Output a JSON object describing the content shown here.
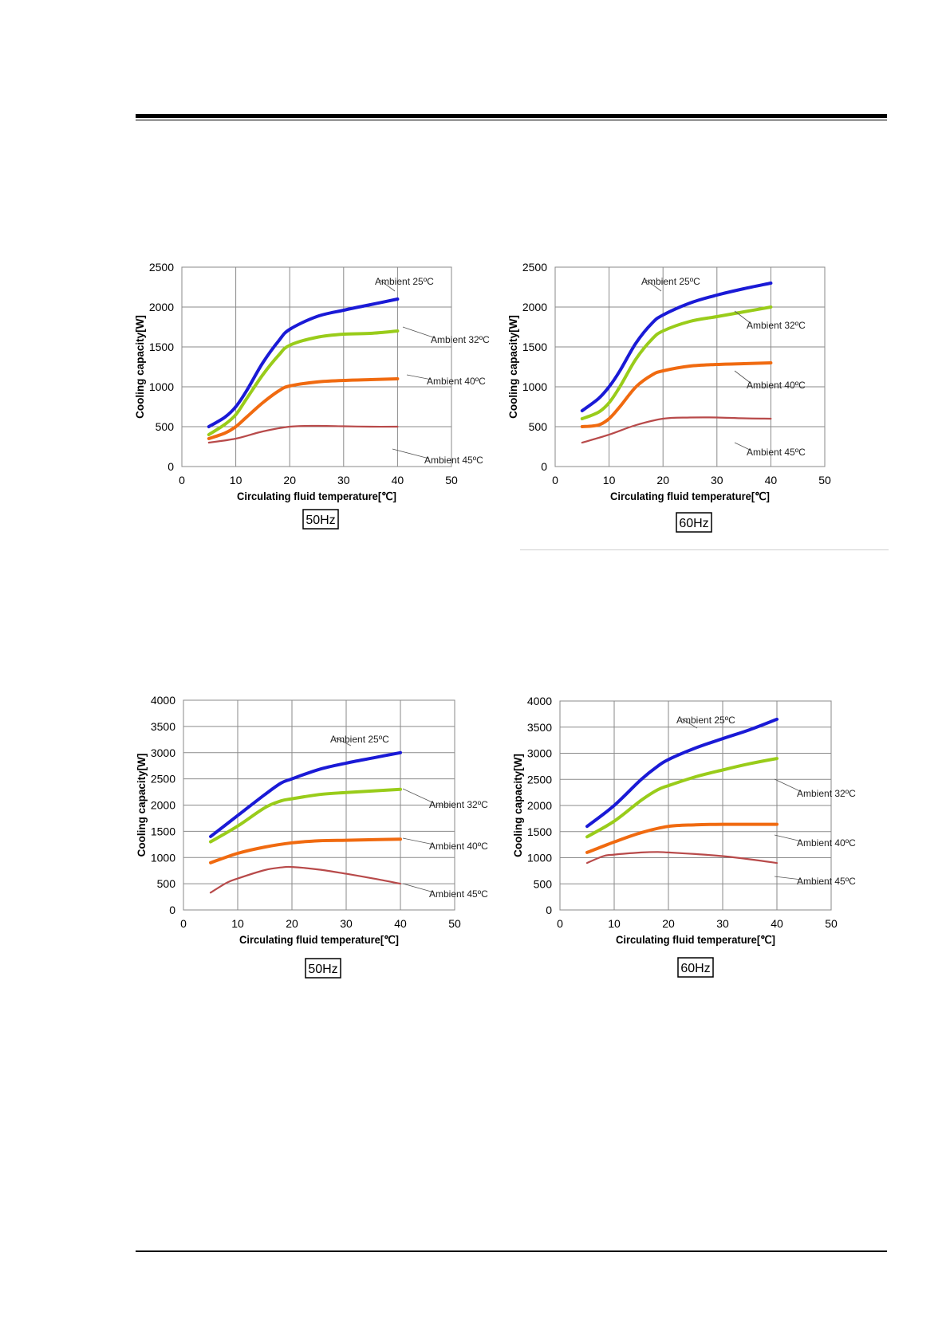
{
  "charts": [
    {
      "id": "chart1",
      "type": "line",
      "xlabel": "Circulating fluid temperature[℃]",
      "ylabel": "Cooling capacity[W]",
      "xlim": [
        0,
        50
      ],
      "ylim": [
        0,
        2500
      ],
      "xticks": [
        0,
        10,
        20,
        30,
        40,
        50
      ],
      "yticks": [
        0,
        500,
        1000,
        1500,
        2000,
        2500
      ],
      "grid": true,
      "freq_label": "50Hz",
      "series": [
        {
          "name": "Ambient 25ºC",
          "color": "#1a1ad6",
          "thick": true,
          "x": [
            5,
            8,
            10,
            12,
            15,
            18,
            20,
            25,
            30,
            35,
            40
          ],
          "y": [
            500,
            620,
            750,
            950,
            1300,
            1580,
            1720,
            1880,
            1960,
            2030,
            2100
          ]
        },
        {
          "name": "Ambient 32ºC",
          "color": "#99cc1a",
          "thick": true,
          "x": [
            5,
            8,
            10,
            12,
            15,
            18,
            20,
            25,
            30,
            35,
            40
          ],
          "y": [
            400,
            530,
            650,
            850,
            1150,
            1400,
            1520,
            1620,
            1660,
            1670,
            1700
          ]
        },
        {
          "name": "Ambient 40ºC",
          "color": "#f06a10",
          "thick": true,
          "x": [
            5,
            8,
            10,
            12,
            15,
            18,
            20,
            25,
            30,
            35,
            40
          ],
          "y": [
            350,
            420,
            500,
            620,
            800,
            950,
            1010,
            1060,
            1080,
            1090,
            1100
          ]
        },
        {
          "name": "Ambient 45ºC",
          "color": "#b84a4a",
          "thick": false,
          "x": [
            5,
            10,
            15,
            20,
            25,
            30,
            35,
            40
          ],
          "y": [
            300,
            350,
            440,
            500,
            510,
            505,
            500,
            500
          ]
        }
      ]
    },
    {
      "id": "chart2",
      "type": "line",
      "xlabel": "Circulating fluid temperature[℃]",
      "ylabel": "Cooling capacity[W]",
      "xlim": [
        0,
        50
      ],
      "ylim": [
        0,
        2500
      ],
      "xticks": [
        0,
        10,
        20,
        30,
        40,
        50
      ],
      "yticks": [
        0,
        500,
        1000,
        1500,
        2000,
        2500
      ],
      "grid": true,
      "freq_label": "60Hz",
      "series": [
        {
          "name": "Ambient 25ºC",
          "color": "#1a1ad6",
          "thick": true,
          "x": [
            5,
            8,
            10,
            12,
            15,
            18,
            20,
            25,
            30,
            35,
            40
          ],
          "y": [
            700,
            850,
            1000,
            1200,
            1550,
            1800,
            1900,
            2050,
            2150,
            2230,
            2300
          ]
        },
        {
          "name": "Ambient 32ºC",
          "color": "#99cc1a",
          "thick": true,
          "x": [
            5,
            8,
            10,
            12,
            15,
            18,
            20,
            25,
            30,
            35,
            40
          ],
          "y": [
            600,
            680,
            800,
            1000,
            1350,
            1600,
            1700,
            1820,
            1880,
            1940,
            2000
          ]
        },
        {
          "name": "Ambient 40ºC",
          "color": "#f06a10",
          "thick": true,
          "x": [
            5,
            8,
            10,
            12,
            15,
            18,
            20,
            25,
            30,
            35,
            40
          ],
          "y": [
            500,
            520,
            600,
            750,
            1000,
            1150,
            1200,
            1260,
            1280,
            1290,
            1300
          ]
        },
        {
          "name": "Ambient 45ºC",
          "color": "#b84a4a",
          "thick": false,
          "x": [
            5,
            10,
            15,
            20,
            25,
            30,
            35,
            40
          ],
          "y": [
            300,
            400,
            520,
            600,
            615,
            615,
            605,
            600
          ]
        }
      ]
    },
    {
      "id": "chart3",
      "type": "line",
      "xlabel": "Circulating fluid temperature[℃]",
      "ylabel": "Cooling capacity[W]",
      "xlim": [
        0,
        50
      ],
      "ylim": [
        0,
        4000
      ],
      "xticks": [
        0,
        10,
        20,
        30,
        40,
        50
      ],
      "yticks": [
        0,
        500,
        1000,
        1500,
        2000,
        2500,
        3000,
        3500,
        4000
      ],
      "grid": true,
      "freq_label": "50Hz",
      "series": [
        {
          "name": "Ambient 25ºC",
          "color": "#1a1ad6",
          "thick": true,
          "x": [
            5,
            10,
            15,
            18,
            20,
            25,
            30,
            35,
            40
          ],
          "y": [
            1400,
            1800,
            2200,
            2420,
            2500,
            2680,
            2800,
            2900,
            3000
          ]
        },
        {
          "name": "Ambient 32ºC",
          "color": "#99cc1a",
          "thick": true,
          "x": [
            5,
            10,
            15,
            18,
            20,
            25,
            30,
            35,
            40
          ],
          "y": [
            1300,
            1600,
            1950,
            2080,
            2120,
            2200,
            2240,
            2270,
            2300
          ]
        },
        {
          "name": "Ambient 40ºC",
          "color": "#f06a10",
          "thick": true,
          "x": [
            5,
            10,
            15,
            20,
            25,
            30,
            35,
            40
          ],
          "y": [
            900,
            1080,
            1200,
            1280,
            1320,
            1330,
            1340,
            1350
          ]
        },
        {
          "name": "Ambient 45ºC",
          "color": "#b84a4a",
          "thick": false,
          "x": [
            5,
            8,
            10,
            15,
            18,
            20,
            25,
            30,
            35,
            40
          ],
          "y": [
            330,
            520,
            600,
            760,
            810,
            820,
            770,
            690,
            600,
            500
          ]
        }
      ]
    },
    {
      "id": "chart4",
      "type": "line",
      "xlabel": "Circulating fluid temperature[℃]",
      "ylabel": "Cooling capacity[W]",
      "xlim": [
        0,
        50
      ],
      "ylim": [
        0,
        4000
      ],
      "xticks": [
        0,
        10,
        20,
        30,
        40,
        50
      ],
      "yticks": [
        0,
        500,
        1000,
        1500,
        2000,
        2500,
        3000,
        3500,
        4000
      ],
      "grid": true,
      "freq_label": "60Hz",
      "series": [
        {
          "name": "Ambient 25ºC",
          "color": "#1a1ad6",
          "thick": true,
          "x": [
            5,
            10,
            15,
            18,
            20,
            25,
            30,
            35,
            40
          ],
          "y": [
            1600,
            2000,
            2500,
            2750,
            2880,
            3100,
            3280,
            3450,
            3650
          ]
        },
        {
          "name": "Ambient 32ºC",
          "color": "#99cc1a",
          "thick": true,
          "x": [
            5,
            10,
            15,
            18,
            20,
            25,
            30,
            35,
            40
          ],
          "y": [
            1400,
            1700,
            2100,
            2300,
            2380,
            2550,
            2680,
            2800,
            2900
          ]
        },
        {
          "name": "Ambient 40ºC",
          "color": "#f06a10",
          "thick": true,
          "x": [
            5,
            10,
            15,
            20,
            25,
            30,
            35,
            40
          ],
          "y": [
            1100,
            1300,
            1480,
            1600,
            1630,
            1640,
            1640,
            1640
          ]
        },
        {
          "name": "Ambient 45ºC",
          "color": "#b84a4a",
          "thick": false,
          "x": [
            5,
            8,
            10,
            15,
            18,
            20,
            25,
            30,
            35,
            40
          ],
          "y": [
            900,
            1030,
            1060,
            1100,
            1110,
            1100,
            1070,
            1030,
            970,
            900
          ]
        }
      ]
    }
  ]
}
